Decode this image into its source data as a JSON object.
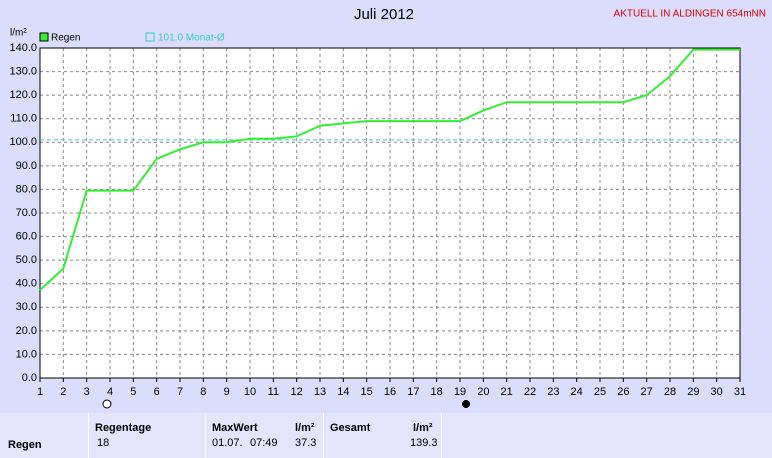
{
  "chart_data": {
    "type": "line",
    "title": "Juli 2012",
    "annotation": "AKTUELL IN ALDINGEN 654mNN",
    "ylabel": "l/m²",
    "x": [
      1,
      2,
      3,
      4,
      5,
      6,
      7,
      8,
      9,
      10,
      11,
      12,
      13,
      14,
      15,
      16,
      17,
      18,
      19,
      20,
      21,
      22,
      23,
      24,
      25,
      26,
      27,
      28,
      29,
      30,
      31
    ],
    "series": [
      {
        "name": "Regen",
        "color": "#33ee33",
        "values": [
          37.3,
          46.5,
          79.5,
          79.5,
          79.5,
          93,
          97,
          100,
          100,
          101.5,
          101.5,
          102.5,
          107,
          108,
          109,
          109,
          109,
          109,
          109,
          113.5,
          117,
          117,
          117,
          117,
          117,
          117,
          120,
          128,
          139.3,
          139.3,
          139.3
        ]
      }
    ],
    "reference": {
      "name": "101.0 Monat-Ø",
      "value": 101.0,
      "color": "#33cccc"
    },
    "xlim": [
      1,
      31
    ],
    "xticks": [
      1,
      2,
      3,
      4,
      5,
      6,
      7,
      8,
      9,
      10,
      11,
      12,
      13,
      14,
      15,
      16,
      17,
      18,
      19,
      20,
      21,
      22,
      23,
      24,
      25,
      26,
      27,
      28,
      29,
      30,
      31
    ],
    "ylim": [
      0,
      140
    ],
    "yticks": [
      {
        "value": 0,
        "label": "0.0"
      },
      {
        "value": 10,
        "label": "10.0"
      },
      {
        "value": 20,
        "label": "20.0"
      },
      {
        "value": 30,
        "label": "30.0"
      },
      {
        "value": 40,
        "label": "40.0"
      },
      {
        "value": 50,
        "label": "50.0"
      },
      {
        "value": 60,
        "label": "60.0"
      },
      {
        "value": 70,
        "label": "70.0"
      },
      {
        "value": 80,
        "label": "80.0"
      },
      {
        "value": 90,
        "label": "90.0"
      },
      {
        "value": 100,
        "label": "100.0"
      },
      {
        "value": 110,
        "label": "110.0"
      },
      {
        "value": 120,
        "label": "120.0"
      },
      {
        "value": 130,
        "label": "130.0"
      },
      {
        "value": 140,
        "label": "140.0"
      }
    ],
    "grid": true
  },
  "table": {
    "headers": [
      "Regentage",
      "MaxWert",
      "l/m²",
      "Gesamt",
      "l/m²"
    ],
    "rows": [
      [
        "Regen",
        "18",
        "01.07.",
        "07:49",
        "37.3",
        "139.3"
      ]
    ]
  }
}
